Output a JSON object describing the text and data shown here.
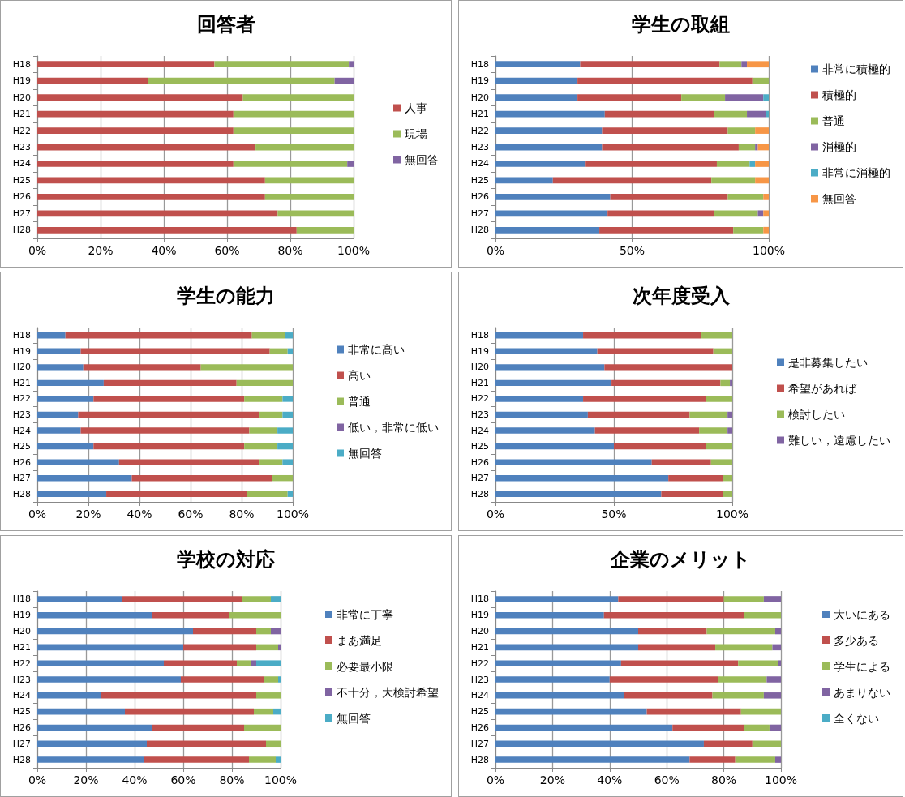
{
  "chart_data": [
    {
      "type": "bar",
      "title": "回答者",
      "orientation": "horizontal",
      "stacked": true,
      "grid": "x",
      "legend": "right",
      "xlim": [
        0,
        100
      ],
      "xticks": [
        {
          "value": 0,
          "label": "0%"
        },
        {
          "value": 20,
          "label": "20%"
        },
        {
          "value": 40,
          "label": "40%"
        },
        {
          "value": 60,
          "label": "60%"
        },
        {
          "value": 80,
          "label": "80%"
        },
        {
          "value": 100,
          "label": "100%"
        }
      ],
      "categories": [
        "H18",
        "H19",
        "H20",
        "H21",
        "H22",
        "H23",
        "H24",
        "H25",
        "H26",
        "H27",
        "H28"
      ],
      "series": [
        {
          "name": "人事",
          "color": "#c0504d",
          "values": [
            56,
            35,
            65,
            62,
            62,
            69,
            62,
            72,
            72,
            76,
            82
          ]
        },
        {
          "name": "現場",
          "color": "#9bbb59",
          "values": [
            42.5,
            59,
            35,
            38,
            38,
            31,
            36,
            28,
            28,
            24,
            18
          ]
        },
        {
          "name": "無回答",
          "color": "#8064a2",
          "values": [
            1.5,
            6,
            0,
            0,
            0,
            0,
            2,
            0,
            0,
            0,
            0
          ]
        }
      ]
    },
    {
      "type": "bar",
      "title": "学生の取組",
      "orientation": "horizontal",
      "stacked": true,
      "grid": "x",
      "legend": "right",
      "xlim": [
        0,
        100
      ],
      "xticks": [
        {
          "value": 0,
          "label": "0%"
        },
        {
          "value": 50,
          "label": "50%"
        },
        {
          "value": 100,
          "label": "100%"
        }
      ],
      "categories": [
        "H18",
        "H19",
        "H20",
        "H21",
        "H22",
        "H23",
        "H24",
        "H25",
        "H26",
        "H27",
        "H28"
      ],
      "series": [
        {
          "name": "非常に積極的",
          "color": "#4f81bd",
          "values": [
            31,
            30,
            30,
            40,
            39,
            39,
            33,
            21,
            42,
            41,
            38
          ]
        },
        {
          "name": "積極的",
          "color": "#c0504d",
          "values": [
            51,
            64,
            38,
            40,
            46,
            50,
            48,
            58,
            43,
            39,
            49
          ]
        },
        {
          "name": "普通",
          "color": "#9bbb59",
          "values": [
            8,
            6,
            16,
            12,
            10,
            6,
            12,
            16,
            13,
            16,
            11
          ]
        },
        {
          "name": "消極的",
          "color": "#8064a2",
          "values": [
            2,
            0,
            14,
            7,
            0,
            1,
            0,
            0,
            0,
            2,
            0
          ]
        },
        {
          "name": "非常に消極的",
          "color": "#4bacc6",
          "values": [
            0,
            0,
            2,
            1,
            0,
            0,
            2,
            0,
            0,
            0,
            0
          ]
        },
        {
          "name": "無回答",
          "color": "#f79646",
          "values": [
            8,
            0,
            0,
            0,
            5,
            4,
            5,
            5,
            2,
            2,
            2
          ]
        }
      ]
    },
    {
      "type": "bar",
      "title": "学生の能力",
      "orientation": "horizontal",
      "stacked": true,
      "grid": "x",
      "legend": "right",
      "xlim": [
        0,
        100
      ],
      "xticks": [
        {
          "value": 0,
          "label": "0%"
        },
        {
          "value": 20,
          "label": "20%"
        },
        {
          "value": 40,
          "label": "40%"
        },
        {
          "value": 60,
          "label": "60%"
        },
        {
          "value": 80,
          "label": "80%"
        },
        {
          "value": 100,
          "label": "100%"
        }
      ],
      "categories": [
        "H18",
        "H19",
        "H20",
        "H21",
        "H22",
        "H23",
        "H24",
        "H25",
        "H26",
        "H27",
        "H28"
      ],
      "series": [
        {
          "name": "非常に高い",
          "color": "#4f81bd",
          "values": [
            11,
            17,
            18,
            26,
            22,
            16,
            17,
            22,
            32,
            37,
            27
          ]
        },
        {
          "name": "高い",
          "color": "#c0504d",
          "values": [
            73,
            74,
            46,
            52,
            59,
            71,
            66,
            59,
            55,
            55,
            55
          ]
        },
        {
          "name": "普通",
          "color": "#9bbb59",
          "values": [
            13,
            7,
            36,
            22,
            15,
            9,
            11,
            13,
            9,
            8,
            16
          ]
        },
        {
          "name": "低い，非常に低い",
          "color": "#8064a2",
          "values": [
            0,
            0,
            0,
            0,
            0,
            0,
            0,
            0,
            0,
            0,
            0
          ]
        },
        {
          "name": "無回答",
          "color": "#4bacc6",
          "values": [
            3,
            2,
            0,
            0,
            4,
            4,
            6,
            6,
            4,
            0,
            2
          ]
        }
      ]
    },
    {
      "type": "bar",
      "title": "次年度受入",
      "orientation": "horizontal",
      "stacked": true,
      "grid": "x",
      "legend": "right",
      "xlim": [
        0,
        100
      ],
      "xticks": [
        {
          "value": 0,
          "label": "0%"
        },
        {
          "value": 50,
          "label": "50%"
        },
        {
          "value": 100,
          "label": "100%"
        }
      ],
      "categories": [
        "H18",
        "H19",
        "H20",
        "H21",
        "H22",
        "H23",
        "H24",
        "H25",
        "H26",
        "H27",
        "H28"
      ],
      "series": [
        {
          "name": "是非募集したい",
          "color": "#4f81bd",
          "values": [
            37,
            43,
            46,
            49,
            37,
            39,
            42,
            50,
            66,
            73,
            70
          ]
        },
        {
          "name": "希望があれば",
          "color": "#c0504d",
          "values": [
            50,
            49,
            54,
            46,
            52,
            43,
            44,
            39,
            25,
            23,
            26
          ]
        },
        {
          "name": "検討したい",
          "color": "#9bbb59",
          "values": [
            13,
            8,
            0,
            4,
            11,
            16,
            12,
            11,
            9,
            4,
            4
          ]
        },
        {
          "name": "難しい，遠慮したい",
          "color": "#8064a2",
          "values": [
            0,
            0,
            0,
            1,
            0,
            2,
            2,
            0,
            0,
            0,
            0
          ]
        }
      ]
    },
    {
      "type": "bar",
      "title": "学校の対応",
      "orientation": "horizontal",
      "stacked": true,
      "grid": "x",
      "legend": "right",
      "xlim": [
        0,
        100
      ],
      "xticks": [
        {
          "value": 0,
          "label": "0%"
        },
        {
          "value": 20,
          "label": "20%"
        },
        {
          "value": 40,
          "label": "40%"
        },
        {
          "value": 60,
          "label": "60%"
        },
        {
          "value": 80,
          "label": "80%"
        },
        {
          "value": 100,
          "label": "100%"
        }
      ],
      "categories": [
        "H18",
        "H19",
        "H20",
        "H21",
        "H22",
        "H23",
        "H24",
        "H25",
        "H26",
        "H27",
        "H28"
      ],
      "series": [
        {
          "name": "非常に丁寧",
          "color": "#4f81bd",
          "values": [
            35,
            47,
            64,
            60,
            52,
            59,
            26,
            36,
            47,
            45,
            44
          ]
        },
        {
          "name": "まあ満足",
          "color": "#c0504d",
          "values": [
            49,
            32,
            26,
            30,
            30,
            34,
            64,
            53,
            38,
            49,
            43
          ]
        },
        {
          "name": "必要最小限",
          "color": "#9bbb59",
          "values": [
            12,
            21,
            6,
            9,
            6,
            6,
            10,
            8,
            15,
            6,
            11
          ]
        },
        {
          "name": "不十分，大検討希望",
          "color": "#8064a2",
          "values": [
            0,
            0,
            4,
            1,
            2,
            0,
            0,
            0,
            0,
            0,
            0
          ]
        },
        {
          "name": "無回答",
          "color": "#4bacc6",
          "values": [
            4,
            0,
            0,
            0,
            10,
            1,
            0,
            3,
            0,
            0,
            2
          ]
        }
      ]
    },
    {
      "type": "bar",
      "title": "企業のメリット",
      "orientation": "horizontal",
      "stacked": true,
      "grid": "x",
      "legend": "right",
      "xlim": [
        0,
        100
      ],
      "xticks": [
        {
          "value": 0,
          "label": "0%"
        },
        {
          "value": 20,
          "label": "20%"
        },
        {
          "value": 40,
          "label": "40%"
        },
        {
          "value": 60,
          "label": "60%"
        },
        {
          "value": 80,
          "label": "80%"
        },
        {
          "value": 100,
          "label": "100%"
        }
      ],
      "categories": [
        "H18",
        "H19",
        "H20",
        "H21",
        "H22",
        "H23",
        "H24",
        "H25",
        "H26",
        "H27",
        "H28"
      ],
      "series": [
        {
          "name": "大いにある",
          "color": "#4f81bd",
          "values": [
            43,
            38,
            50,
            50,
            44,
            40,
            45,
            53,
            62,
            73,
            68
          ]
        },
        {
          "name": "多少ある",
          "color": "#c0504d",
          "values": [
            37,
            49,
            24,
            27,
            41,
            38,
            31,
            33,
            25,
            17,
            16
          ]
        },
        {
          "name": "学生による",
          "color": "#9bbb59",
          "values": [
            14,
            13,
            24,
            20,
            14,
            17,
            18,
            14,
            9,
            10,
            14
          ]
        },
        {
          "name": "あまりない",
          "color": "#8064a2",
          "values": [
            6,
            0,
            2,
            3,
            1,
            5,
            6,
            0,
            4,
            0,
            2
          ]
        },
        {
          "name": "全くない",
          "color": "#4bacc6",
          "values": [
            0,
            0,
            0,
            0,
            0,
            0,
            0,
            0,
            0,
            0,
            0
          ]
        }
      ]
    }
  ]
}
